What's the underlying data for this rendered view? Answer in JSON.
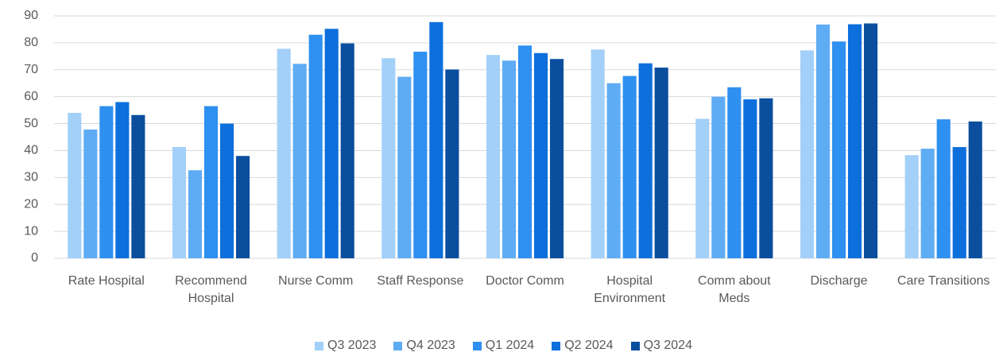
{
  "chart_data": {
    "type": "bar",
    "categories": [
      "Rate Hospital",
      "Recommend Hospital",
      "Nurse Comm",
      "Staff Response",
      "Doctor Comm",
      "Hospital Environment",
      "Comm about Meds",
      "Discharge",
      "Care Transitions"
    ],
    "series": [
      {
        "name": "Q3 2023",
        "color": "#a3d0f8",
        "values": [
          54,
          41.3,
          77.8,
          74.3,
          75.5,
          77.5,
          51.8,
          77.2,
          38.3
        ]
      },
      {
        "name": "Q4 2023",
        "color": "#5eacf4",
        "values": [
          47.8,
          32.7,
          72.2,
          67.4,
          73.4,
          65,
          60,
          86.8,
          40.7
        ]
      },
      {
        "name": "Q1 2024",
        "color": "#2e90f0",
        "values": [
          56.5,
          56.5,
          83,
          76.7,
          79,
          67.7,
          63.5,
          80.5,
          51.6
        ]
      },
      {
        "name": "Q2 2024",
        "color": "#0c6fdc",
        "values": [
          58,
          50,
          85.2,
          87.7,
          76.2,
          72.4,
          59,
          86.9,
          41.3
        ]
      },
      {
        "name": "Q3 2024",
        "color": "#0b4e9e",
        "values": [
          53.2,
          38,
          79.8,
          70.1,
          74,
          70.8,
          59.4,
          87.2,
          50.8
        ]
      }
    ],
    "ylim": [
      0,
      90
    ],
    "yticks": [
      0,
      10,
      20,
      30,
      40,
      50,
      60,
      70,
      80,
      90
    ],
    "grid": true,
    "legend": "bottom"
  }
}
